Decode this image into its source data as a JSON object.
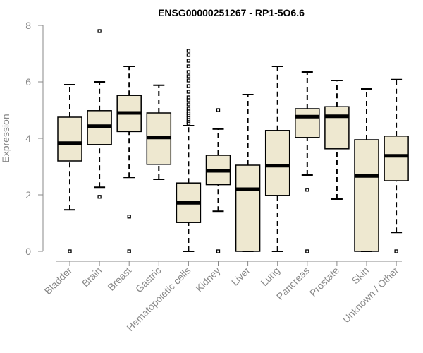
{
  "chart_data": {
    "type": "boxplot",
    "title": "ENSG00000251267 - RP1-5O6.6",
    "ylabel": "Expression",
    "xlabel": "",
    "ylim": [
      0,
      8
    ],
    "yticks": [
      0,
      2,
      4,
      6,
      8
    ],
    "box_color": "#EEE8D0",
    "median_color": "#000000",
    "categories": [
      "Bladder",
      "Brain",
      "Breast",
      "Gastric",
      "Hematopoietic cells",
      "Kidney",
      "Liver",
      "Lung",
      "Pancreas",
      "Prostate",
      "Skin",
      "Unknown / Other"
    ],
    "boxes": [
      {
        "category": "Bladder",
        "whisker_low": 1.47,
        "q1": 3.2,
        "median": 3.83,
        "q3": 4.75,
        "whisker_high": 5.9,
        "outliers": [
          0.0
        ]
      },
      {
        "category": "Brain",
        "whisker_low": 2.27,
        "q1": 3.78,
        "median": 4.43,
        "q3": 4.98,
        "whisker_high": 6.0,
        "outliers": [
          7.8,
          1.93
        ]
      },
      {
        "category": "Breast",
        "whisker_low": 2.62,
        "q1": 4.24,
        "median": 4.9,
        "q3": 5.52,
        "whisker_high": 6.55,
        "outliers": [
          1.23,
          0.0
        ]
      },
      {
        "category": "Gastric",
        "whisker_low": 2.55,
        "q1": 3.08,
        "median": 4.03,
        "q3": 4.9,
        "whisker_high": 5.88,
        "outliers": []
      },
      {
        "category": "Hematopoietic cells",
        "whisker_low": 0.0,
        "q1": 1.02,
        "median": 1.72,
        "q3": 2.42,
        "whisker_high": 4.45,
        "outliers": [
          7.1,
          6.95,
          6.75,
          6.55,
          6.35,
          6.2,
          6.05,
          5.85,
          5.65,
          5.45,
          5.35,
          5.2,
          5.05,
          4.95,
          4.88,
          4.8,
          4.72,
          4.65,
          4.58,
          4.52
        ]
      },
      {
        "category": "Kidney",
        "whisker_low": 1.42,
        "q1": 2.36,
        "median": 2.85,
        "q3": 3.4,
        "whisker_high": 4.33,
        "outliers": [
          5.0,
          0.0
        ]
      },
      {
        "category": "Liver",
        "whisker_low": 0.0,
        "q1": 0.0,
        "median": 2.2,
        "q3": 3.05,
        "whisker_high": 5.55,
        "outliers": []
      },
      {
        "category": "Lung",
        "whisker_low": 0.0,
        "q1": 1.98,
        "median": 3.03,
        "q3": 4.28,
        "whisker_high": 6.55,
        "outliers": []
      },
      {
        "category": "Pancreas",
        "whisker_low": 2.7,
        "q1": 4.03,
        "median": 4.77,
        "q3": 5.05,
        "whisker_high": 6.35,
        "outliers": [
          2.18,
          0.0
        ]
      },
      {
        "category": "Prostate",
        "whisker_low": 1.85,
        "q1": 3.63,
        "median": 4.78,
        "q3": 5.12,
        "whisker_high": 6.05,
        "outliers": []
      },
      {
        "category": "Skin",
        "whisker_low": 0.0,
        "q1": 0.0,
        "median": 2.67,
        "q3": 3.95,
        "whisker_high": 5.75,
        "outliers": []
      },
      {
        "category": "Unknown / Other",
        "whisker_low": 0.67,
        "q1": 2.5,
        "median": 3.38,
        "q3": 4.08,
        "whisker_high": 6.08,
        "outliers": [
          0.0
        ]
      }
    ]
  }
}
